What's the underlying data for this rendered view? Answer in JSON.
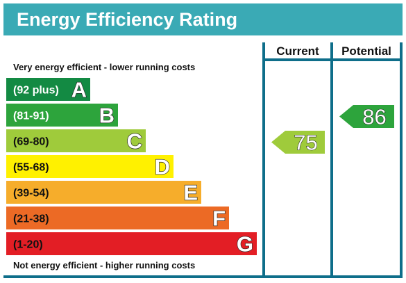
{
  "title": "Energy Efficiency Rating",
  "top_caption": "Very energy efficient - lower running costs",
  "bottom_caption": "Not energy efficient - higher running costs",
  "columns": {
    "current": "Current",
    "potential": "Potential"
  },
  "colors": {
    "header": "#3aaab5",
    "frame": "#0e6e8a",
    "text_dark": "#111111"
  },
  "chart_data": {
    "type": "bar",
    "categories": [
      "A",
      "B",
      "C",
      "D",
      "E",
      "F",
      "G"
    ],
    "ranges": [
      "(92 plus)",
      "(81-91)",
      "(69-80)",
      "(55-68)",
      "(39-54)",
      "(21-38)",
      "(1-20)"
    ],
    "bands": [
      {
        "letter": "A",
        "range": "(92 plus)",
        "min": 92,
        "color": "#138a43",
        "range_color": "#ffffff"
      },
      {
        "letter": "B",
        "range": "(81-91)",
        "min": 81,
        "color": "#2da43c",
        "range_color": "#ffffff"
      },
      {
        "letter": "C",
        "range": "(69-80)",
        "min": 69,
        "color": "#9fcb3b",
        "range_color": "#111111"
      },
      {
        "letter": "D",
        "range": "(55-68)",
        "min": 55,
        "color": "#fff100",
        "range_color": "#111111"
      },
      {
        "letter": "E",
        "range": "(39-54)",
        "min": 39,
        "color": "#f6ad2b",
        "range_color": "#111111"
      },
      {
        "letter": "F",
        "range": "(21-38)",
        "min": 21,
        "color": "#ec6a25",
        "range_color": "#111111"
      },
      {
        "letter": "G",
        "range": "(1-20)",
        "min": 1,
        "color": "#e31e25",
        "range_color": "#111111"
      }
    ],
    "current": {
      "value": 75,
      "band": "C",
      "color": "#9fcb3b"
    },
    "potential": {
      "value": 86,
      "band": "B",
      "color": "#2da43c"
    }
  }
}
